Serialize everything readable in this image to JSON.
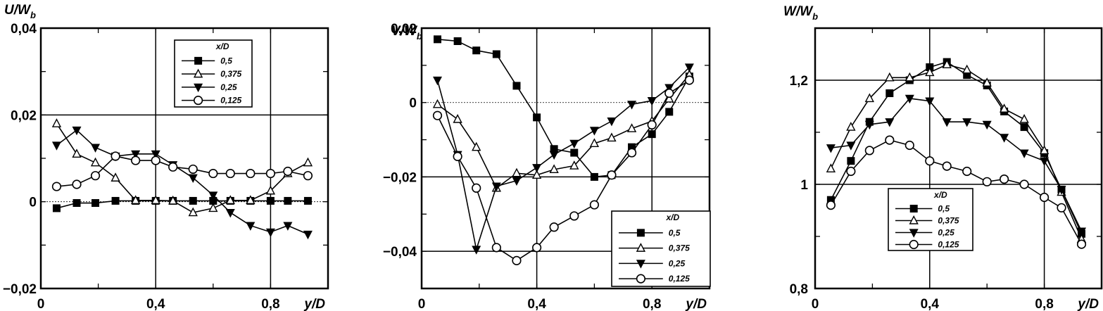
{
  "chart_data": [
    {
      "type": "line",
      "ylabel": "U/W",
      "ylabel_sub": "b",
      "xlabel": "y/D",
      "xlim": [
        0,
        1.0
      ],
      "ylim": [
        -0.02,
        0.04
      ],
      "xticks": [
        0,
        0.4,
        0.8
      ],
      "xtick_labels": [
        "0",
        "0,4",
        "0,8"
      ],
      "yticks": [
        -0.02,
        0,
        0.02,
        0.04
      ],
      "ytick_labels": [
        "−0,02",
        "0",
        "0,02",
        "0,04"
      ],
      "grid": true,
      "legend_title": "x/D",
      "legend_position": "top-center",
      "series": [
        {
          "name": "0,5",
          "marker": "square",
          "x": [
            0.055,
            0.125,
            0.19,
            0.26,
            0.33,
            0.4,
            0.46,
            0.53,
            0.6,
            0.66,
            0.73,
            0.8,
            0.86,
            0.93
          ],
          "y": [
            -0.0015,
            -0.0003,
            -0.0003,
            0.0002,
            0.0002,
            0.0002,
            0.0002,
            0.0002,
            0.0002,
            0.0002,
            0.0002,
            0.0002,
            0.0002,
            0.0002
          ]
        },
        {
          "name": "0,375",
          "marker": "triangle-up",
          "x": [
            0.055,
            0.125,
            0.19,
            0.26,
            0.33,
            0.4,
            0.46,
            0.53,
            0.6,
            0.66,
            0.73,
            0.8,
            0.86,
            0.93
          ],
          "y": [
            0.018,
            0.011,
            0.009,
            0.0055,
            0.0003,
            0.0003,
            0.0002,
            -0.0025,
            -0.0015,
            0.0003,
            0.0003,
            0.0025,
            0.0065,
            0.009
          ]
        },
        {
          "name": "0,25",
          "marker": "triangle-down",
          "x": [
            0.055,
            0.125,
            0.19,
            0.26,
            0.33,
            0.4,
            0.46,
            0.53,
            0.6,
            0.66,
            0.73,
            0.8,
            0.86,
            0.93
          ],
          "y": [
            0.013,
            0.0165,
            0.0125,
            0.0105,
            0.011,
            0.011,
            0.0085,
            0.0055,
            0.0015,
            -0.0025,
            -0.0055,
            -0.007,
            -0.0055,
            -0.0075
          ]
        },
        {
          "name": "0,125",
          "marker": "circle",
          "x": [
            0.055,
            0.125,
            0.19,
            0.26,
            0.33,
            0.4,
            0.46,
            0.53,
            0.6,
            0.66,
            0.73,
            0.8,
            0.86,
            0.93
          ],
          "y": [
            0.0035,
            0.004,
            0.006,
            0.0105,
            0.0095,
            0.0095,
            0.008,
            0.0075,
            0.0065,
            0.0065,
            0.0065,
            0.0065,
            0.007,
            0.006
          ]
        }
      ]
    },
    {
      "type": "line",
      "ylabel": "V/W",
      "ylabel_sub": "b",
      "xlabel": "y/D",
      "xlim": [
        0,
        1.0
      ],
      "ylim": [
        -0.05,
        0.02
      ],
      "xticks": [
        0,
        0.4,
        0.8
      ],
      "xtick_labels": [
        "0",
        "0,4",
        "0,8"
      ],
      "yticks": [
        -0.04,
        -0.02,
        0,
        0.02
      ],
      "ytick_labels": [
        "−0,04",
        "−0,02",
        "0",
        "0,02"
      ],
      "grid": true,
      "legend_title": "x/D",
      "legend_position": "bottom-right",
      "series": [
        {
          "name": "0,5",
          "marker": "square",
          "x": [
            0.055,
            0.125,
            0.19,
            0.26,
            0.33,
            0.4,
            0.46,
            0.53,
            0.6,
            0.66,
            0.73,
            0.8,
            0.86,
            0.93
          ],
          "y": [
            0.017,
            0.0165,
            0.014,
            0.013,
            0.0045,
            -0.004,
            -0.0125,
            -0.0135,
            -0.02,
            -0.0195,
            -0.012,
            -0.0085,
            -0.0025,
            0.007
          ]
        },
        {
          "name": "0,375",
          "marker": "triangle-up",
          "x": [
            0.055,
            0.125,
            0.19,
            0.26,
            0.33,
            0.4,
            0.46,
            0.53,
            0.6,
            0.66,
            0.73,
            0.8,
            0.86,
            0.93
          ],
          "y": [
            -0.0005,
            -0.0045,
            -0.012,
            -0.023,
            -0.019,
            -0.0195,
            -0.018,
            -0.017,
            -0.011,
            -0.0095,
            -0.007,
            -0.005,
            0.001,
            0.0075
          ]
        },
        {
          "name": "0,25",
          "marker": "triangle-down",
          "x": [
            0.055,
            0.125,
            0.19,
            0.26,
            0.33,
            0.4,
            0.46,
            0.53,
            0.6,
            0.66,
            0.73,
            0.8,
            0.86,
            0.93
          ],
          "y": [
            0.006,
            -0.014,
            -0.0395,
            -0.0225,
            -0.021,
            -0.0175,
            -0.014,
            -0.011,
            -0.0075,
            -0.005,
            -0.0005,
            0.0005,
            0.004,
            0.0095
          ]
        },
        {
          "name": "0,125",
          "marker": "circle",
          "x": [
            0.055,
            0.125,
            0.19,
            0.26,
            0.33,
            0.4,
            0.46,
            0.53,
            0.6,
            0.66,
            0.73,
            0.8,
            0.86,
            0.93
          ],
          "y": [
            -0.0035,
            -0.0145,
            -0.023,
            -0.039,
            -0.0425,
            -0.039,
            -0.0335,
            -0.0305,
            -0.0275,
            -0.0195,
            -0.0135,
            -0.006,
            0.0025,
            0.006
          ]
        }
      ]
    },
    {
      "type": "line",
      "ylabel": "W/W",
      "ylabel_sub": "b",
      "xlabel": "y/D",
      "xlim": [
        0,
        1.0
      ],
      "ylim": [
        0.8,
        1.3
      ],
      "xticks": [
        0,
        0.4,
        0.8
      ],
      "xtick_labels": [
        "0",
        "0,4",
        "0,8"
      ],
      "yticks": [
        0.8,
        1.0,
        1.2
      ],
      "ytick_labels": [
        "0,8",
        "1",
        "1,2"
      ],
      "grid": true,
      "legend_title": "x/D",
      "legend_position": "bottom-center",
      "series": [
        {
          "name": "0,5",
          "marker": "square",
          "x": [
            0.055,
            0.125,
            0.19,
            0.26,
            0.33,
            0.4,
            0.46,
            0.53,
            0.6,
            0.66,
            0.73,
            0.8,
            0.86,
            0.93
          ],
          "y": [
            0.97,
            1.045,
            1.12,
            1.175,
            1.2,
            1.225,
            1.235,
            1.21,
            1.19,
            1.14,
            1.11,
            1.06,
            0.99,
            0.905
          ]
        },
        {
          "name": "0,375",
          "marker": "triangle-up",
          "x": [
            0.055,
            0.125,
            0.19,
            0.26,
            0.33,
            0.4,
            0.46,
            0.53,
            0.6,
            0.66,
            0.73,
            0.8,
            0.86,
            0.93
          ],
          "y": [
            1.03,
            1.11,
            1.165,
            1.205,
            1.205,
            1.215,
            1.23,
            1.22,
            1.195,
            1.145,
            1.125,
            1.065,
            0.985,
            0.895
          ]
        },
        {
          "name": "0,25",
          "marker": "triangle-down",
          "x": [
            0.055,
            0.125,
            0.19,
            0.26,
            0.33,
            0.4,
            0.46,
            0.53,
            0.6,
            0.66,
            0.73,
            0.8,
            0.86,
            0.93
          ],
          "y": [
            1.07,
            1.075,
            1.115,
            1.12,
            1.165,
            1.16,
            1.12,
            1.12,
            1.115,
            1.09,
            1.06,
            1.045,
            0.99,
            0.91
          ]
        },
        {
          "name": "0,125",
          "marker": "circle",
          "x": [
            0.055,
            0.125,
            0.19,
            0.26,
            0.33,
            0.4,
            0.46,
            0.53,
            0.6,
            0.66,
            0.73,
            0.8,
            0.86,
            0.93
          ],
          "y": [
            0.96,
            1.025,
            1.065,
            1.085,
            1.075,
            1.045,
            1.035,
            1.025,
            1.005,
            1.01,
            1.0,
            0.975,
            0.955,
            0.885
          ]
        }
      ]
    }
  ]
}
